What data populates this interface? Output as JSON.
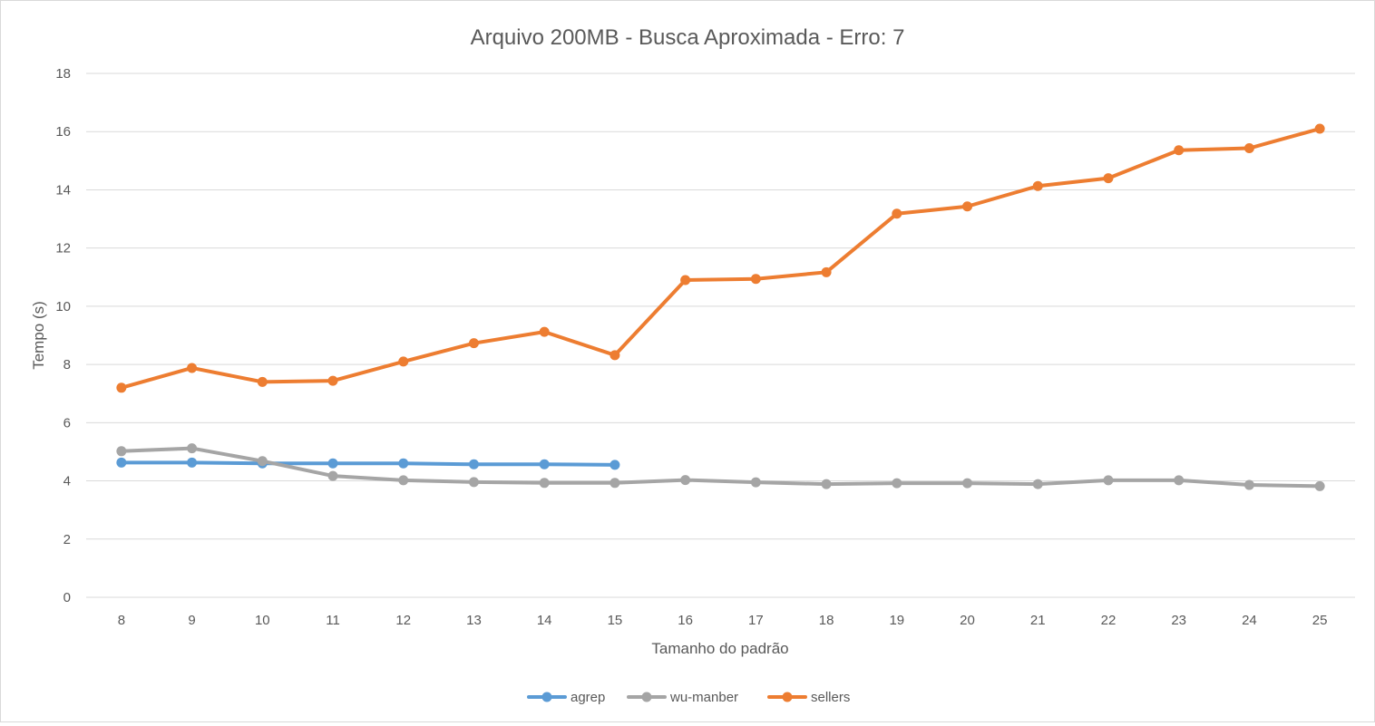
{
  "chart_data": {
    "type": "line",
    "title": "Arquivo 200MB - Busca Aproximada - Erro: 7",
    "xlabel": "Tamanho do padrão",
    "ylabel": "Tempo (s)",
    "ylim": [
      0,
      18
    ],
    "yticks": [
      "0",
      "2",
      "4",
      "6",
      "8",
      "10",
      "12",
      "14",
      "16",
      "18"
    ],
    "categories": [
      "8",
      "9",
      "10",
      "11",
      "12",
      "13",
      "14",
      "15",
      "16",
      "17",
      "18",
      "19",
      "20",
      "21",
      "22",
      "23",
      "24",
      "25"
    ],
    "grid": "horizontal",
    "legend_position": "bottom",
    "series": [
      {
        "name": "agrep",
        "color": "#5b9bd5",
        "values": [
          4.63,
          4.63,
          4.6,
          4.6,
          4.6,
          4.57,
          4.57,
          4.55,
          null,
          null,
          null,
          null,
          null,
          null,
          null,
          null,
          null,
          null
        ]
      },
      {
        "name": "wu-manber",
        "color": "#a5a5a5",
        "values": [
          5.02,
          5.12,
          4.68,
          4.17,
          4.02,
          3.96,
          3.93,
          3.93,
          4.03,
          3.95,
          3.89,
          3.92,
          3.92,
          3.89,
          4.02,
          4.02,
          3.86,
          3.82
        ]
      },
      {
        "name": "sellers",
        "color": "#ed7d31",
        "values": [
          7.2,
          7.88,
          7.4,
          7.44,
          8.1,
          8.73,
          9.12,
          8.32,
          10.9,
          10.94,
          11.17,
          13.18,
          13.43,
          14.13,
          14.4,
          15.36,
          15.43,
          16.1
        ]
      }
    ]
  }
}
